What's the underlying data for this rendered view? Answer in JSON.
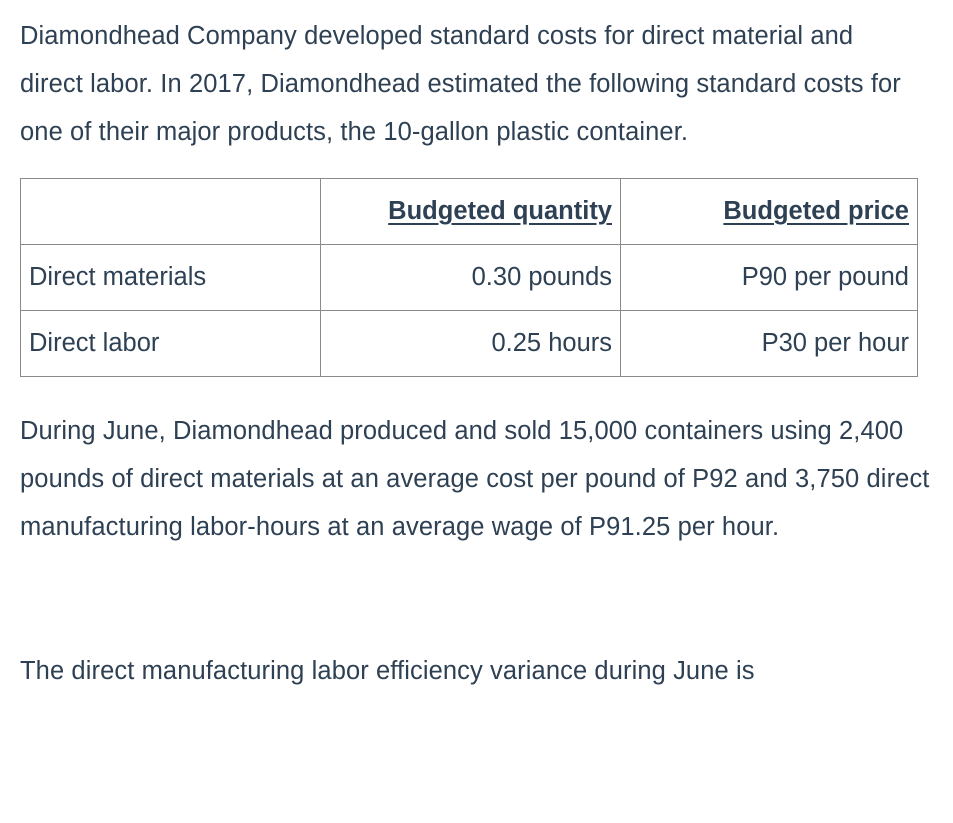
{
  "document": {
    "intro": "Diamondhead Company developed standard costs for direct material and direct labor. In 2017, Diamondhead estimated the following standard costs for one of their major products, the 10-gallon plastic container.",
    "table": {
      "headers": {
        "label": "",
        "quantity": "Budgeted quantity",
        "price": "Budgeted price"
      },
      "rows": [
        {
          "label": "Direct materials",
          "quantity": "0.30 pounds",
          "price": "P90 per pound"
        },
        {
          "label": "Direct labor",
          "quantity": "0.25 hours",
          "price": "P30 per hour"
        }
      ]
    },
    "body": "During June, Diamondhead produced and sold 15,000 containers using 2,400 pounds of direct materials at an average cost per pound of P92 and 3,750 direct manufacturing labor-hours at an average wage of P91.25 per hour.",
    "question": "The direct manufacturing labor efficiency variance during June is"
  },
  "colors": {
    "text": "#2e4053",
    "table_border": "#8a8a8a",
    "background": "#ffffff"
  }
}
